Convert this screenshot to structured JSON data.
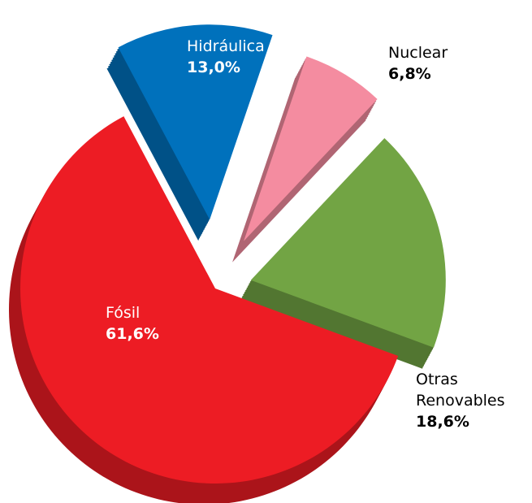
{
  "chart_data": {
    "type": "pie",
    "categories": [
      "Fósil",
      "Hidráulica",
      "Nuclear",
      "Otras Renovables"
    ],
    "values": [
      61.6,
      13.0,
      6.8,
      18.6
    ],
    "value_labels": [
      "61,6%",
      "13,0%",
      "6,8%",
      "18,6%"
    ],
    "colors": [
      "#ed1c24",
      "#0071bc",
      "#f48ca0",
      "#72a444"
    ]
  }
}
